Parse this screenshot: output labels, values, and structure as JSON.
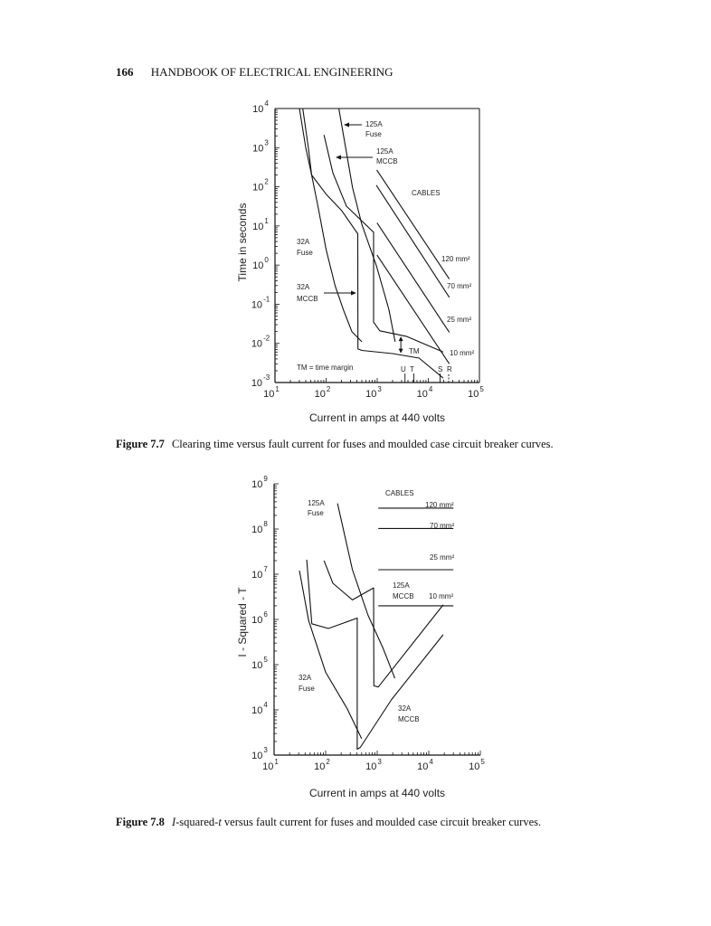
{
  "header": {
    "page_number": "166",
    "running_title": "HANDBOOK OF ELECTRICAL ENGINEERING"
  },
  "figures": [
    {
      "number": "Figure 7.7",
      "caption": "Clearing time versus fault current for fuses and moulded case circuit breaker curves."
    },
    {
      "number": "Figure 7.8",
      "caption_italic_1": "I",
      "caption_mid": "-squared-",
      "caption_italic_2": "t",
      "caption_rest": " versus fault current for fuses and moulded case circuit breaker curves."
    }
  ],
  "chart_data": [
    {
      "type": "line",
      "xlabel": "Current in amps at 440 volts",
      "ylabel": "Time in seconds",
      "xscale": "log",
      "yscale": "log",
      "xlim": [
        10,
        100000
      ],
      "ylim": [
        0.001,
        10000
      ],
      "x_tick_exponents": [
        1,
        2,
        3,
        4,
        5
      ],
      "y_tick_exponents": [
        4,
        3,
        2,
        1,
        0,
        -1,
        -2,
        -3
      ],
      "grid": false,
      "labels": {
        "fuse125": [
          "125A",
          "Fuse"
        ],
        "mccb125": [
          "125A",
          "MCCB"
        ],
        "cables": "CABLES",
        "fuse32": [
          "32A",
          "Fuse"
        ],
        "mccb32": [
          "32A",
          "MCCB"
        ],
        "c120": "120 mm²",
        "c70": "70 mm²",
        "c25": "25 mm²",
        "c10": "10 mm²",
        "tm": "TM",
        "tm_note": "TM = time margin",
        "u": "U",
        "t": "T",
        "s": "S",
        "r": "R"
      },
      "series": [
        {
          "name": "32A Fuse",
          "points": [
            [
              30,
              10000
            ],
            [
              40,
              1000
            ],
            [
              52,
              200
            ],
            [
              70,
              30
            ],
            [
              100,
              2.5
            ],
            [
              150,
              0.3
            ],
            [
              220,
              0.07
            ],
            [
              320,
              0.02
            ],
            [
              500,
              0.011
            ]
          ]
        },
        {
          "name": "32A MCCB",
          "points": [
            [
              35,
              10000
            ],
            [
              45,
              1000
            ],
            [
              52,
              200
            ],
            [
              100,
              65
            ],
            [
              200,
              25
            ],
            [
              417,
              6.3
            ],
            [
              420,
              0.0072
            ],
            [
              500,
              0.0066
            ],
            [
              2000,
              0.0055
            ],
            [
              6600,
              0.0042
            ],
            [
              19500,
              0.0013
            ]
          ]
        },
        {
          "name": "125A Fuse",
          "points": [
            [
              178,
              10000
            ],
            [
              330,
              93
            ],
            [
              500,
              11
            ],
            [
              980,
              0.9
            ],
            [
              1700,
              0.072
            ],
            [
              2240,
              0.011
            ]
          ]
        },
        {
          "name": "125A MCCB",
          "points": [
            [
              91,
              2100
            ],
            [
              135,
              230
            ],
            [
              250,
              32
            ],
            [
              850,
              6.9
            ],
            [
              850,
              0.035
            ],
            [
              1120,
              0.021
            ],
            [
              3800,
              0.015
            ],
            [
              19500,
              0.006
            ]
          ]
        },
        {
          "name": "120 mm²",
          "points": [
            [
              980,
              270
            ],
            [
              25700,
              0.44
            ]
          ]
        },
        {
          "name": "70 mm²",
          "points": [
            [
              960,
              110
            ],
            [
              25700,
              0.15
            ]
          ]
        },
        {
          "name": "25 mm²",
          "points": [
            [
              990,
              12
            ],
            [
              25700,
              0.019
            ]
          ]
        },
        {
          "name": "10 mm²",
          "points": [
            [
              990,
              1.8
            ],
            [
              25700,
              0.003
            ]
          ]
        }
      ],
      "time_margin": {
        "x": 2900,
        "y_from": 0.015,
        "y_to": 0.0056
      },
      "markers": [
        {
          "label": "U",
          "x": 3500
        },
        {
          "label": "T",
          "x": 5200
        },
        {
          "label": "S",
          "x": 17000
        },
        {
          "label": "R",
          "x": 25000
        }
      ]
    },
    {
      "type": "line",
      "xlabel": "Current in amps at 440 volts",
      "ylabel": "I - Squared - T",
      "xscale": "log",
      "yscale": "log",
      "xlim": [
        10,
        100000
      ],
      "ylim": [
        1000,
        1000000000
      ],
      "x_tick_exponents": [
        1,
        2,
        3,
        4,
        5
      ],
      "y_tick_exponents": [
        9,
        8,
        7,
        6,
        5,
        4,
        3
      ],
      "grid": false,
      "labels": {
        "fuse125": [
          "125A",
          "Fuse"
        ],
        "cables": "CABLES",
        "mccb125": [
          "125A",
          "MCCB"
        ],
        "c120": "120 mm²",
        "c70": "70 mm²",
        "c25": "25 mm²",
        "c10": "10 mm²",
        "fuse32": [
          "32A",
          "Fuse"
        ],
        "mccb32": [
          "32A",
          "MCCB"
        ]
      },
      "series": [
        {
          "name": "32A Fuse",
          "points": [
            [
              31,
              12000000
            ],
            [
              47,
              930000
            ],
            [
              100,
              68000
            ],
            [
              260,
              10700
            ],
            [
              500,
              2300
            ]
          ]
        },
        {
          "name": "32A MCCB",
          "points": [
            [
              43,
              21000000
            ],
            [
              54,
              800000
            ],
            [
              113,
              630000
            ],
            [
              410,
              1070000
            ],
            [
              410,
              1350
            ],
            [
              470,
              1480
            ],
            [
              1900,
              17000
            ],
            [
              19000,
              460000
            ]
          ]
        },
        {
          "name": "125A Fuse",
          "points": [
            [
              170,
              370000000
            ],
            [
              330,
              12600000
            ],
            [
              660,
              1260000
            ],
            [
              1300,
              230000
            ],
            [
              2200,
              50000
            ]
          ]
        },
        {
          "name": "125A MCCB",
          "points": [
            [
              93,
              20000000
            ],
            [
              138,
              6300000
            ],
            [
              330,
              2700000
            ],
            [
              850,
              5000000
            ],
            [
              860,
              34000
            ],
            [
              1050,
              32000
            ],
            [
              19000,
              2100000
            ]
          ]
        },
        {
          "name": "120 mm²",
          "points": [
            [
              1050,
              290000000
            ],
            [
              30000,
              290000000
            ]
          ]
        },
        {
          "name": "70 mm²",
          "points": [
            [
              1050,
              103000000
            ],
            [
              30000,
              103000000
            ]
          ]
        },
        {
          "name": "25 mm²",
          "points": [
            [
              1050,
              12600000
            ],
            [
              30000,
              12600000
            ]
          ]
        },
        {
          "name": "10 mm²",
          "points": [
            [
              1050,
              2000000
            ],
            [
              30000,
              2000000
            ]
          ]
        }
      ]
    }
  ]
}
